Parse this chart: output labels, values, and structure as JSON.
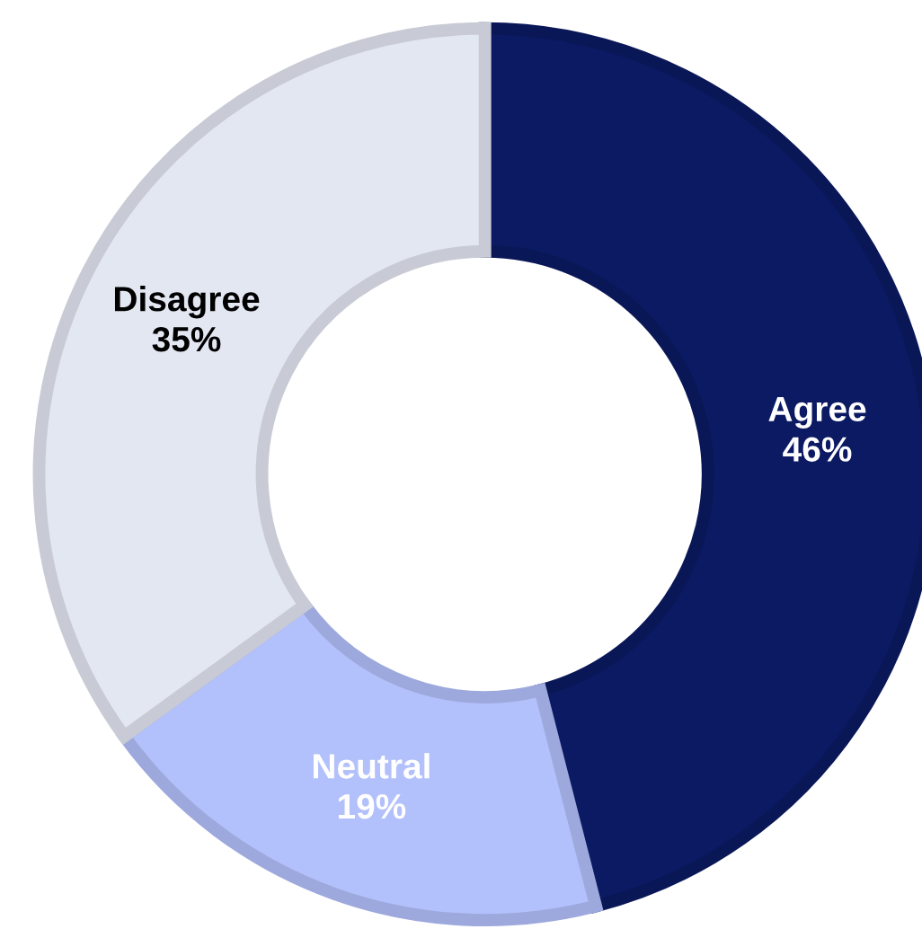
{
  "chart_data": {
    "type": "donut",
    "categories": [
      "Agree",
      "Neutral",
      "Disagree"
    ],
    "values": [
      46,
      19,
      35
    ],
    "colors": [
      "#0b1a63",
      "#b2c0fb",
      "#e3e7f2"
    ],
    "value_labels": [
      "46%",
      "19%",
      "35%"
    ],
    "legend": false
  }
}
